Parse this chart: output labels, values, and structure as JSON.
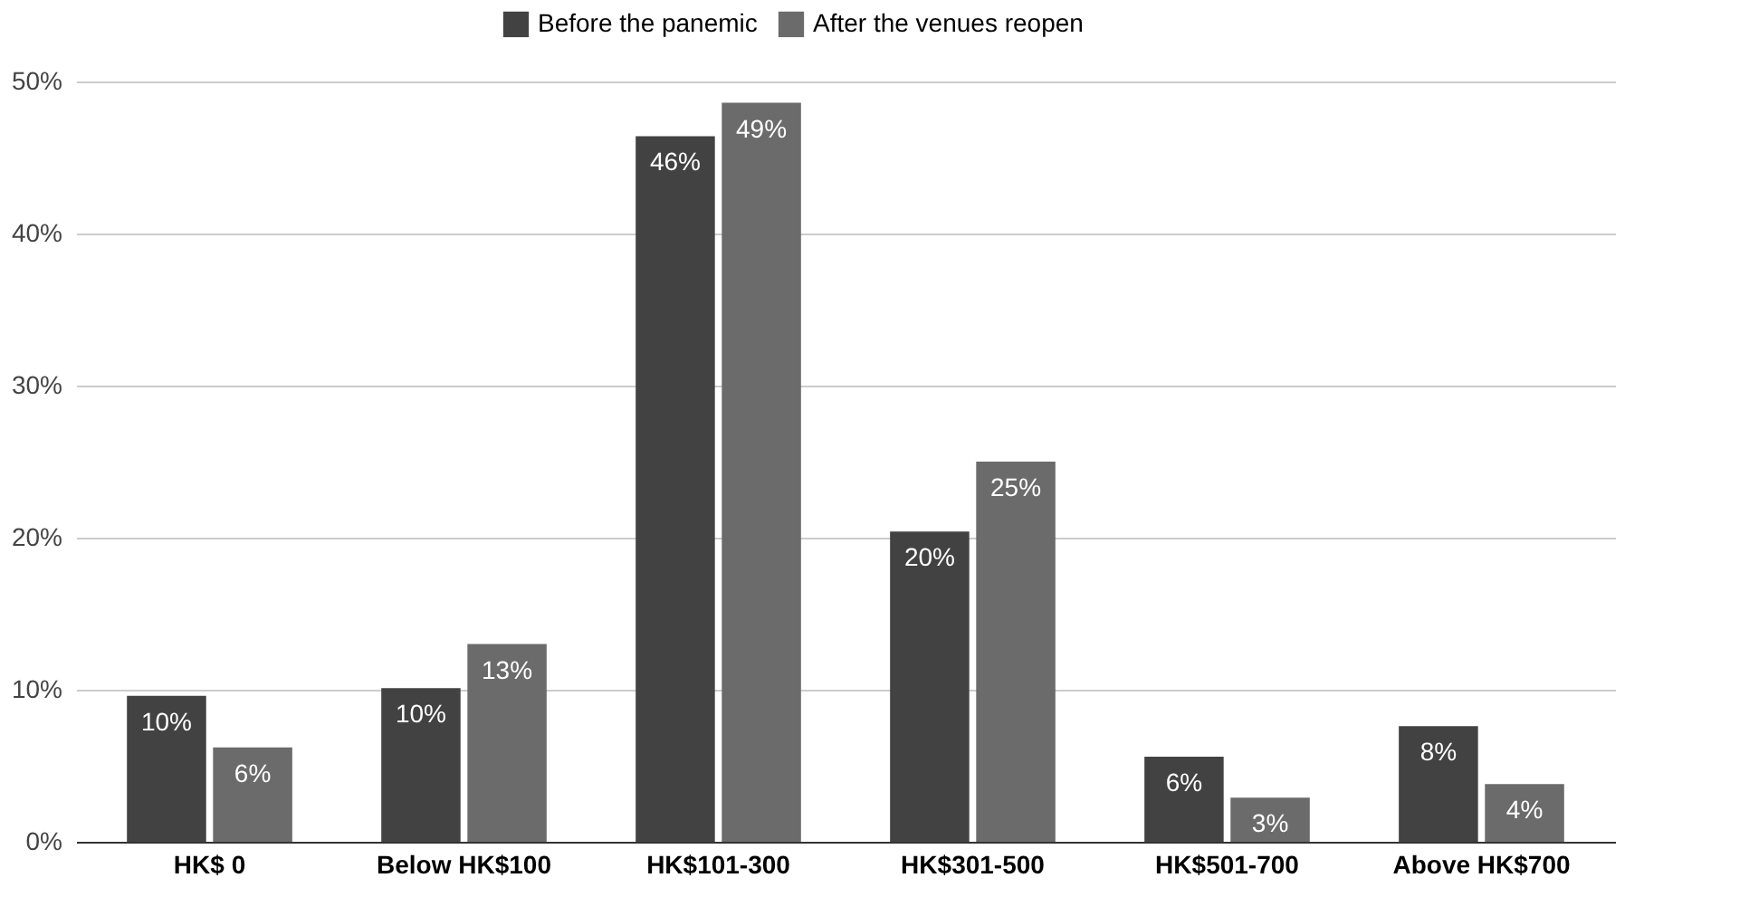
{
  "chart_data": {
    "type": "bar",
    "categories": [
      "HK$ 0",
      "Below HK$100",
      "HK$101-300",
      "HK$301-500",
      "HK$501-700",
      "Above HK$700"
    ],
    "series": [
      {
        "name": "Before the panemic",
        "color": "#424242",
        "values": [
          9.6,
          10.1,
          46.4,
          20.4,
          5.6,
          7.6
        ],
        "value_labels": [
          "10%",
          "10%",
          "46%",
          "20%",
          "6%",
          "8%"
        ]
      },
      {
        "name": "After the venues reopen",
        "color": "#6b6b6b",
        "values": [
          6.2,
          13.0,
          48.6,
          25.0,
          2.9,
          3.8
        ],
        "value_labels": [
          "6%",
          "13%",
          "49%",
          "25%",
          "3%",
          "4%"
        ]
      }
    ],
    "ylim": [
      0,
      50
    ],
    "yticks": [
      {
        "value": 0,
        "label": "0%"
      },
      {
        "value": 10,
        "label": "10%"
      },
      {
        "value": 20,
        "label": "20%"
      },
      {
        "value": 30,
        "label": "30%"
      },
      {
        "value": 40,
        "label": "40%"
      },
      {
        "value": 50,
        "label": "50%"
      }
    ],
    "grid": "y",
    "legend": "top"
  }
}
